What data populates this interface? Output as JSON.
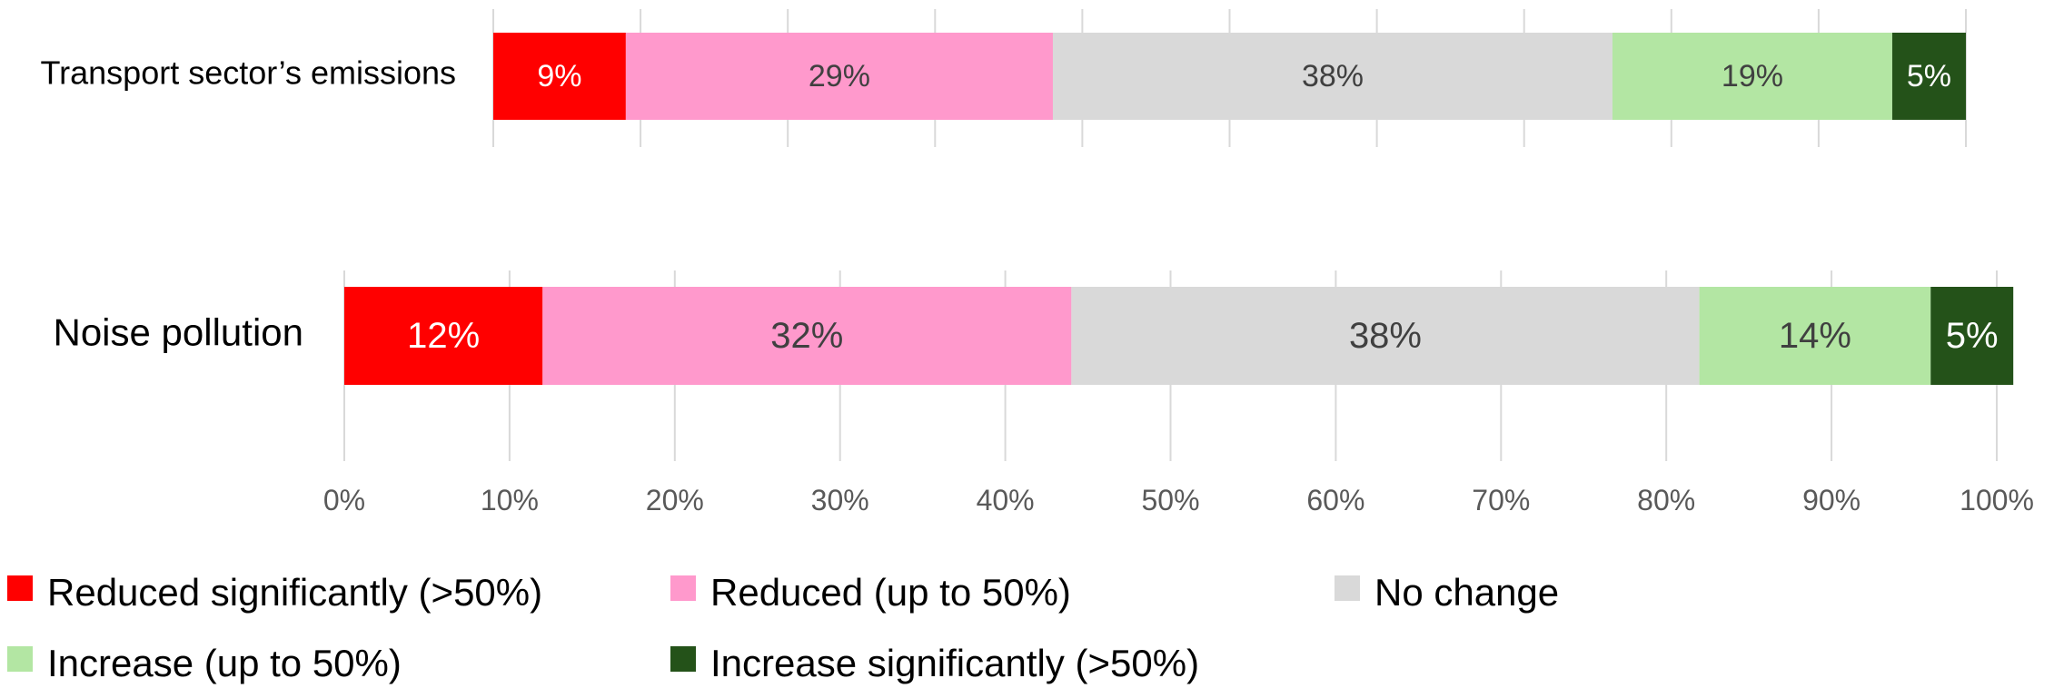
{
  "chart_data": {
    "type": "bar",
    "orientation": "horizontal",
    "stacked": true,
    "percent_stacked": true,
    "title": "",
    "xlabel": "",
    "ylabel": "",
    "xlim": [
      0,
      100
    ],
    "grid": true,
    "legend_position": "bottom",
    "x_ticks": [
      "0%",
      "10%",
      "20%",
      "30%",
      "40%",
      "50%",
      "60%",
      "70%",
      "80%",
      "90%",
      "100%"
    ],
    "categories": [
      "Transport sector’s emissions",
      "Noise pollution"
    ],
    "series": [
      {
        "name": "Reduced significantly (>50%)",
        "color": "#ff0000",
        "label_color": "#ffffff",
        "values": [
          9,
          12
        ],
        "labels": [
          "9%",
          "12%"
        ]
      },
      {
        "name": "Reduced (up to 50%)",
        "color": "#ff99cc",
        "label_color": "#404040",
        "values": [
          29,
          32
        ],
        "labels": [
          "29%",
          "32%"
        ]
      },
      {
        "name": "No change",
        "color": "#d9d9d9",
        "label_color": "#404040",
        "values": [
          38,
          38
        ],
        "labels": [
          "38%",
          "38%"
        ]
      },
      {
        "name": "Increase (up to 50%)",
        "color": "#b3e6a3",
        "label_color": "#404040",
        "values": [
          19,
          14
        ],
        "labels": [
          "19%",
          "14%"
        ]
      },
      {
        "name": "Increase significantly (>50%)",
        "color": "#245219",
        "label_color": "#ffffff",
        "values": [
          5,
          5
        ],
        "labels": [
          "5%",
          "5%"
        ]
      }
    ]
  }
}
